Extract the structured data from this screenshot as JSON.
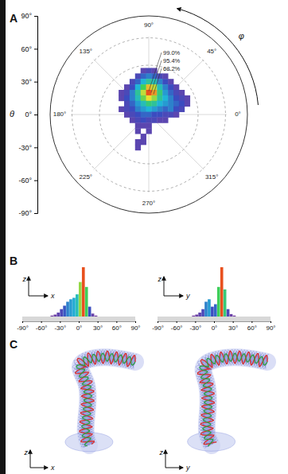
{
  "chart_data": [
    {
      "type": "polar_heatmap",
      "panel_label": "A",
      "y_label": "θ",
      "ylim": [
        -90,
        90
      ],
      "yticks": [
        {
          "value": 90,
          "label": "90°"
        },
        {
          "value": 60,
          "label": "60°"
        },
        {
          "value": 30,
          "label": "30°"
        },
        {
          "value": 0,
          "label": "0°"
        },
        {
          "value": -30,
          "label": "-30°"
        },
        {
          "value": -60,
          "label": "-60°"
        },
        {
          "value": -90,
          "label": "-90°"
        }
      ],
      "angle_label": "φ",
      "angle_ticks": [
        {
          "value": 0,
          "label": "0°"
        },
        {
          "value": 45,
          "label": "45°"
        },
        {
          "value": 90,
          "label": "90°"
        },
        {
          "value": 135,
          "label": "135°"
        },
        {
          "value": 180,
          "label": "180°"
        },
        {
          "value": 225,
          "label": "225°"
        },
        {
          "value": 270,
          "label": "270°"
        },
        {
          "value": 315,
          "label": "315°"
        }
      ],
      "rlim": [
        0,
        90
      ],
      "rticks": [
        45,
        70
      ],
      "contour_labels": [
        "99.0%",
        "95.4%",
        "68.2%"
      ],
      "x": [
        -25,
        -20,
        -15,
        -10,
        -5,
        0,
        5,
        10,
        15,
        20,
        25,
        30,
        35
      ],
      "y": [
        40,
        35,
        30,
        25,
        20,
        15,
        10,
        5,
        0,
        -5,
        -10,
        -15,
        -20,
        -25,
        -30
      ],
      "z": [
        [
          null,
          null,
          null,
          null,
          10,
          15,
          10,
          null,
          null,
          null,
          null,
          null,
          null
        ],
        [
          null,
          null,
          null,
          15,
          25,
          30,
          25,
          15,
          10,
          null,
          null,
          null,
          null
        ],
        [
          null,
          null,
          15,
          25,
          40,
          50,
          45,
          30,
          20,
          10,
          null,
          null,
          null
        ],
        [
          null,
          10,
          20,
          40,
          60,
          85,
          75,
          45,
          30,
          20,
          10,
          null,
          null
        ],
        [
          10,
          15,
          30,
          50,
          75,
          100,
          90,
          55,
          35,
          25,
          15,
          10,
          null
        ],
        [
          10,
          20,
          30,
          45,
          65,
          80,
          70,
          50,
          40,
          30,
          20,
          15,
          10
        ],
        [
          null,
          15,
          25,
          35,
          45,
          55,
          50,
          40,
          35,
          30,
          25,
          20,
          10
        ],
        [
          10,
          15,
          20,
          30,
          35,
          40,
          35,
          30,
          25,
          30,
          20,
          15,
          null
        ],
        [
          null,
          10,
          15,
          20,
          25,
          25,
          20,
          20,
          15,
          15,
          10,
          null,
          null
        ],
        [
          null,
          null,
          10,
          15,
          20,
          15,
          15,
          10,
          10,
          null,
          null,
          null,
          null
        ],
        [
          null,
          null,
          null,
          10,
          10,
          10,
          null,
          null,
          null,
          null,
          null,
          null,
          null
        ],
        [
          null,
          null,
          null,
          10,
          null,
          10,
          null,
          null,
          null,
          null,
          null,
          null,
          null
        ],
        [
          null,
          null,
          null,
          null,
          10,
          null,
          null,
          null,
          null,
          null,
          null,
          null,
          null
        ],
        [
          null,
          null,
          null,
          10,
          10,
          null,
          null,
          null,
          null,
          null,
          null,
          null,
          null
        ],
        [
          null,
          null,
          null,
          10,
          null,
          null,
          null,
          null,
          null,
          null,
          null,
          null,
          null
        ]
      ]
    },
    {
      "type": "histogram",
      "panel_label": "B",
      "x_label": "x",
      "y_label": "z",
      "tick_labels": "x",
      "xlim": [
        -90,
        90
      ],
      "xticks": [
        {
          "value": -90,
          "label": "-90°"
        },
        {
          "value": -60,
          "label": "-60°"
        },
        {
          "value": -30,
          "label": "-30°"
        },
        {
          "value": 0,
          "label": "0°"
        },
        {
          "value": 30,
          "label": "30°"
        },
        {
          "value": 60,
          "label": "60°"
        },
        {
          "value": 90,
          "label": "90°"
        }
      ],
      "ylim": [
        0,
        100
      ],
      "bins": [
        -90,
        -85,
        -80,
        -75,
        -70,
        -65,
        -60,
        -55,
        -50,
        -45,
        -40,
        -35,
        -30,
        -25,
        -20,
        -15,
        -10,
        -5,
        0,
        5,
        10,
        15,
        20,
        25,
        30,
        35,
        40,
        45,
        50,
        55,
        60,
        65,
        70,
        75,
        80,
        85,
        90
      ],
      "values": [
        0,
        0,
        0,
        0,
        0,
        0,
        0,
        0,
        0,
        2,
        4,
        8,
        15,
        22,
        30,
        35,
        38,
        45,
        70,
        100,
        60,
        20,
        6,
        2,
        0,
        0,
        0,
        0,
        0,
        0,
        0,
        0,
        0,
        0,
        0,
        0
      ]
    },
    {
      "type": "histogram",
      "x_label": "y",
      "y_label": "z",
      "tick_labels": "x",
      "xlim": [
        -90,
        90
      ],
      "xticks": [
        {
          "value": -90,
          "label": "-90°"
        },
        {
          "value": -60,
          "label": "-60°"
        },
        {
          "value": -30,
          "label": "-30°"
        },
        {
          "value": 0,
          "label": "0°"
        },
        {
          "value": 30,
          "label": "30°"
        },
        {
          "value": 60,
          "label": "60°"
        },
        {
          "value": 90,
          "label": "90°"
        }
      ],
      "ylim": [
        0,
        100
      ],
      "bins": [
        -90,
        -85,
        -80,
        -75,
        -70,
        -65,
        -60,
        -55,
        -50,
        -45,
        -40,
        -35,
        -30,
        -25,
        -20,
        -15,
        -10,
        -5,
        0,
        5,
        10,
        15,
        20,
        25,
        30,
        35,
        40,
        45,
        50,
        55,
        60,
        65,
        70,
        75,
        80,
        85,
        90
      ],
      "values": [
        0,
        0,
        0,
        0,
        0,
        0,
        0,
        0,
        0,
        0,
        0,
        2,
        4,
        8,
        15,
        30,
        35,
        20,
        25,
        60,
        100,
        55,
        15,
        5,
        2,
        0,
        0,
        0,
        0,
        0,
        0,
        0,
        0,
        0,
        0,
        0
      ]
    },
    {
      "type": "structure",
      "panel_label": "C",
      "views": [
        {
          "x_label": "x",
          "y_label": "z"
        },
        {
          "x_label": "y",
          "y_label": "z"
        }
      ]
    }
  ]
}
